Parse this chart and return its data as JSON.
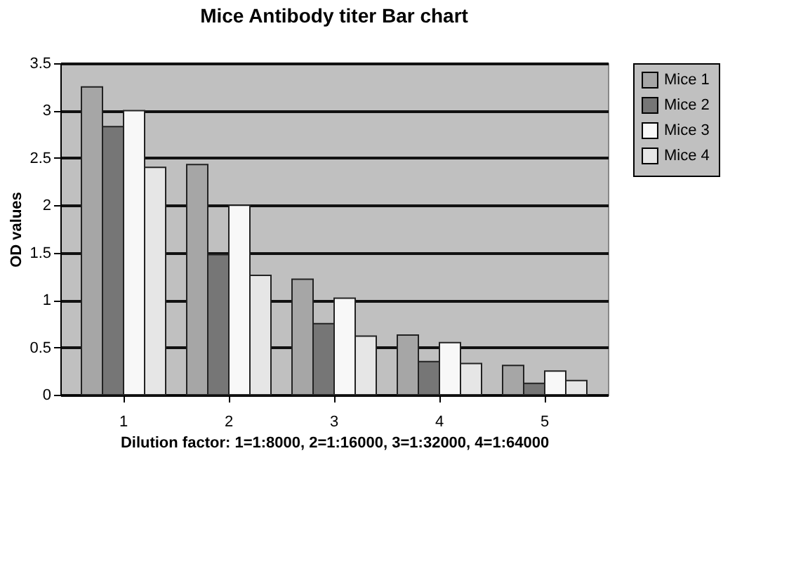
{
  "chart_data": {
    "type": "bar",
    "title": "Mice Antibody titer Bar chart",
    "xlabel": "Dilution factor: 1=1:8000, 2=1:16000, 3=1:32000, 4=1:64000",
    "ylabel": "OD values",
    "categories": [
      "1",
      "2",
      "3",
      "4",
      "5"
    ],
    "series": [
      {
        "name": "Mice 1",
        "color": "#a6a6a6",
        "values": [
          3.25,
          2.43,
          1.22,
          0.63,
          0.31
        ]
      },
      {
        "name": "Mice 2",
        "color": "#767676",
        "values": [
          2.83,
          1.48,
          0.75,
          0.35,
          0.12
        ]
      },
      {
        "name": "Mice 3",
        "color": "#f8f8f8",
        "values": [
          3.0,
          2.0,
          1.02,
          0.55,
          0.25
        ]
      },
      {
        "name": "Mice 4",
        "color": "#e6e6e6",
        "values": [
          2.4,
          1.26,
          0.62,
          0.33,
          0.15
        ]
      }
    ],
    "ylim": [
      0,
      3.5
    ],
    "yticks": [
      0,
      0.5,
      1,
      1.5,
      2,
      2.5,
      3,
      3.5
    ],
    "grid": "y",
    "legend": "right"
  }
}
